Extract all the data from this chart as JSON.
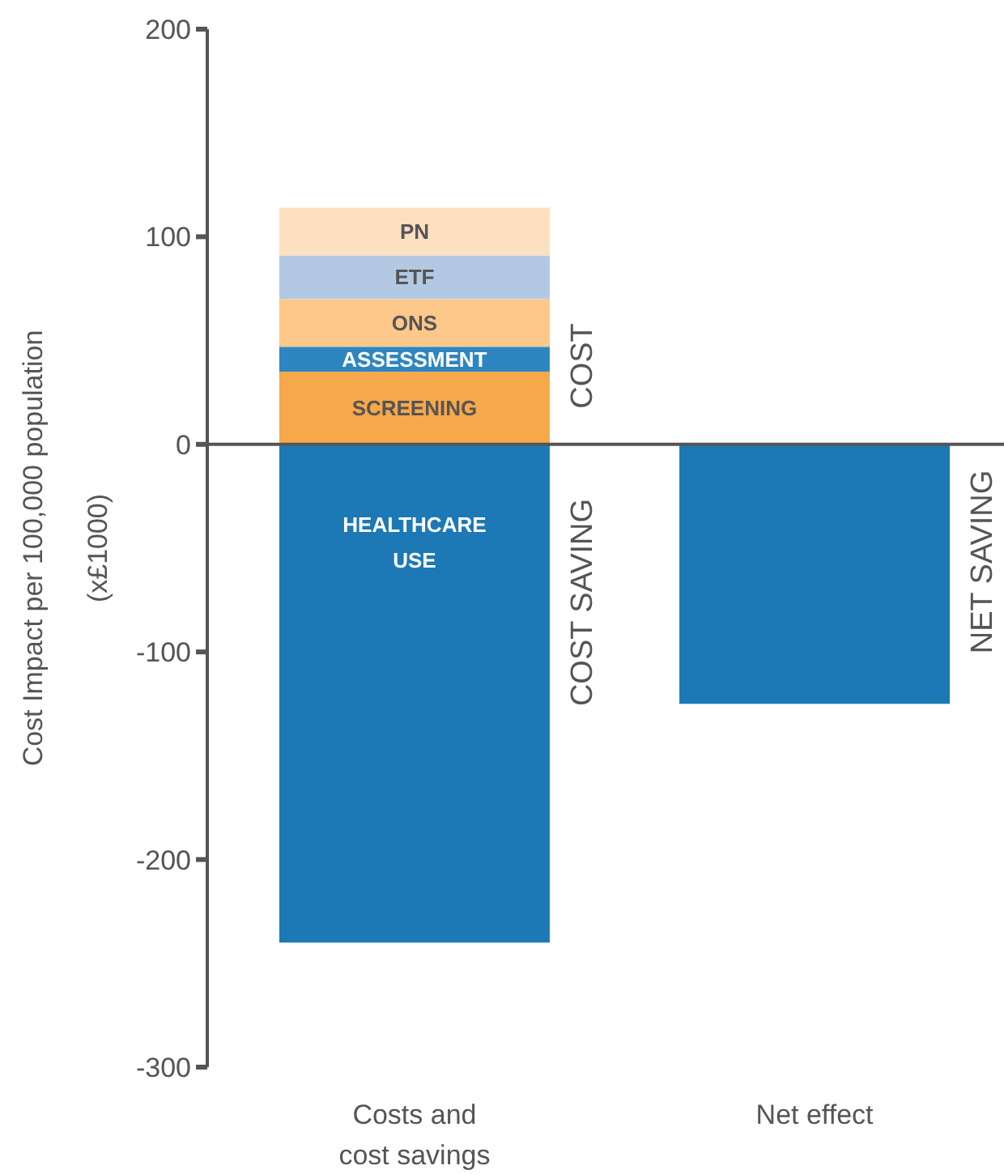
{
  "chart_data": {
    "type": "bar",
    "stacked": true,
    "ylabel": "Cost Impact per 100,000 population (x£1000)",
    "categories": [
      "Costs and cost savings",
      "Net effect"
    ],
    "ylim": [
      -300,
      200
    ],
    "yticks": [
      -300,
      -200,
      -100,
      0,
      100,
      200
    ],
    "legend": false,
    "series": [
      {
        "name": "SCREENING",
        "color": "#f7a84a",
        "values": [
          35,
          null
        ]
      },
      {
        "name": "ASSESSMENT",
        "color": "#2e86c1",
        "values": [
          12,
          null
        ]
      },
      {
        "name": "ONS",
        "color": "#fdc88a",
        "values": [
          23,
          null
        ]
      },
      {
        "name": "ETF",
        "color": "#b3c9e3",
        "values": [
          21,
          null
        ]
      },
      {
        "name": "PN",
        "color": "#fde0bf",
        "values": [
          23,
          null
        ]
      },
      {
        "name": "HEALTHCARE USE",
        "color": "#1c79b5",
        "values": [
          -240,
          null
        ]
      },
      {
        "color": "#1c79b5",
        "values": [
          null,
          -125
        ]
      }
    ],
    "annotations": [
      "COST",
      "COST SAVING",
      "NET SAVING"
    ]
  }
}
